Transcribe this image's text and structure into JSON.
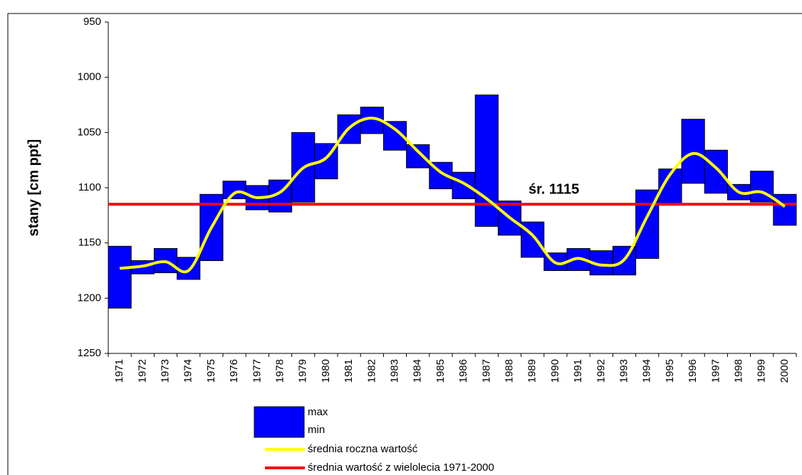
{
  "chart_data": {
    "type": "floating_bar",
    "y_label": "stany [cm ppt]",
    "categories": [
      "1971",
      "1972",
      "1973",
      "1974",
      "1975",
      "1976",
      "1977",
      "1978",
      "1979",
      "1980",
      "1981",
      "1982",
      "1983",
      "1984",
      "1985",
      "1986",
      "1987",
      "1988",
      "1989",
      "1990",
      "1991",
      "1992",
      "1993",
      "1994",
      "1995",
      "1996",
      "1997",
      "1998",
      "1999",
      "2000"
    ],
    "series": [
      {
        "name": "max",
        "color": "#0000ff",
        "values": [
          1153,
          1166,
          1155,
          1163,
          1106,
          1094,
          1098,
          1093,
          1050,
          1060,
          1034,
          1027,
          1040,
          1061,
          1077,
          1086,
          1016,
          1112,
          1131,
          1159,
          1155,
          1157,
          1153,
          1102,
          1083,
          1038,
          1066,
          1097,
          1085,
          1106
        ]
      },
      {
        "name": "min",
        "color": "#0000ff",
        "values": [
          1209,
          1178,
          1177,
          1183,
          1166,
          1110,
          1120,
          1122,
          1113,
          1092,
          1060,
          1051,
          1066,
          1082,
          1101,
          1110,
          1135,
          1143,
          1163,
          1175,
          1175,
          1179,
          1179,
          1164,
          1114,
          1096,
          1105,
          1111,
          1113,
          1134
        ]
      },
      {
        "name": "średnia roczna wartość",
        "color": "#ffff00",
        "values": [
          1173,
          1171,
          1167,
          1175,
          1136,
          1105,
          1109,
          1104,
          1082,
          1073,
          1046,
          1037,
          1047,
          1067,
          1086,
          1096,
          1110,
          1127,
          1143,
          1168,
          1164,
          1170,
          1165,
          1126,
          1088,
          1069,
          1082,
          1104,
          1104,
          1117
        ]
      }
    ],
    "reference_line": {
      "name": "średnia wartość z wielolecia 1971-2000",
      "value": 1115,
      "label": "śr. 1115",
      "color": "#ff0000"
    },
    "ylim": [
      950,
      1250
    ],
    "y_reversed": true,
    "yticks": [
      950,
      1000,
      1050,
      1100,
      1150,
      1200,
      1250
    ]
  }
}
